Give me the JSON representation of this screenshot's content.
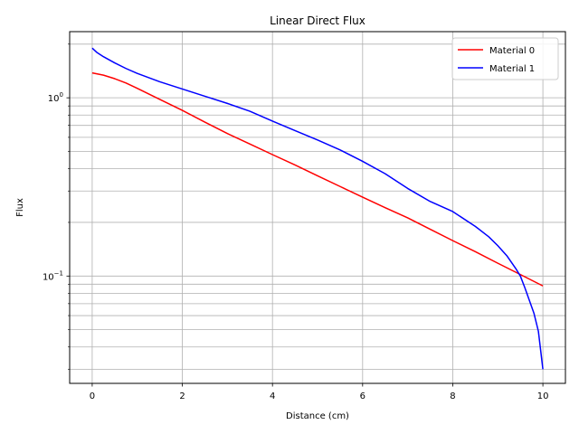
{
  "chart_data": {
    "type": "line",
    "title": "Linear Direct Flux",
    "xlabel": "Distance (cm)",
    "ylabel": "Flux",
    "xscale": "linear",
    "yscale": "log",
    "xlim": [
      -0.5,
      10.5
    ],
    "ylim": [
      0.025,
      2.35
    ],
    "xticks": [
      0,
      2,
      4,
      6,
      8,
      10
    ],
    "xtick_labels": [
      "0",
      "2",
      "4",
      "6",
      "8",
      "10"
    ],
    "yticks_major": [
      0.1,
      1
    ],
    "ytick_labels": [
      {
        "mantissa": "10",
        "exponent": "−1"
      },
      {
        "mantissa": "10",
        "exponent": "0"
      }
    ],
    "yticks_minor": [
      0.03,
      0.04,
      0.05,
      0.06,
      0.07,
      0.08,
      0.09,
      0.2,
      0.3,
      0.4,
      0.5,
      0.6,
      0.7,
      0.8,
      0.9,
      2
    ],
    "grid": true,
    "legend_position": "upper right",
    "series": [
      {
        "name": "Material 0",
        "color": "#ff0000",
        "x": [
          0,
          0.25,
          0.5,
          0.75,
          1,
          1.5,
          2,
          2.5,
          3,
          3.5,
          4,
          4.5,
          5,
          5.5,
          6,
          6.5,
          7,
          7.5,
          8,
          8.5,
          9,
          9.5,
          10
        ],
        "y": [
          1.38,
          1.34,
          1.28,
          1.21,
          1.13,
          0.98,
          0.85,
          0.73,
          0.63,
          0.55,
          0.48,
          0.42,
          0.365,
          0.318,
          0.277,
          0.242,
          0.212,
          0.183,
          0.158,
          0.137,
          0.118,
          0.102,
          0.088
        ]
      },
      {
        "name": "Material 1",
        "color": "#0000ff",
        "x": [
          0,
          0.1,
          0.25,
          0.5,
          0.75,
          1,
          1.5,
          2,
          2.5,
          3,
          3.5,
          4,
          4.5,
          5,
          5.5,
          6,
          6.5,
          7,
          7.5,
          8,
          8.5,
          8.8,
          9,
          9.2,
          9.4,
          9.5,
          9.6,
          9.7,
          9.8,
          9.9,
          10
        ],
        "y": [
          1.9,
          1.8,
          1.7,
          1.57,
          1.46,
          1.37,
          1.23,
          1.12,
          1.02,
          0.93,
          0.84,
          0.74,
          0.655,
          0.58,
          0.51,
          0.44,
          0.375,
          0.31,
          0.262,
          0.23,
          0.19,
          0.166,
          0.148,
          0.13,
          0.11,
          0.1,
          0.086,
          0.073,
          0.062,
          0.049,
          0.03
        ]
      }
    ]
  }
}
